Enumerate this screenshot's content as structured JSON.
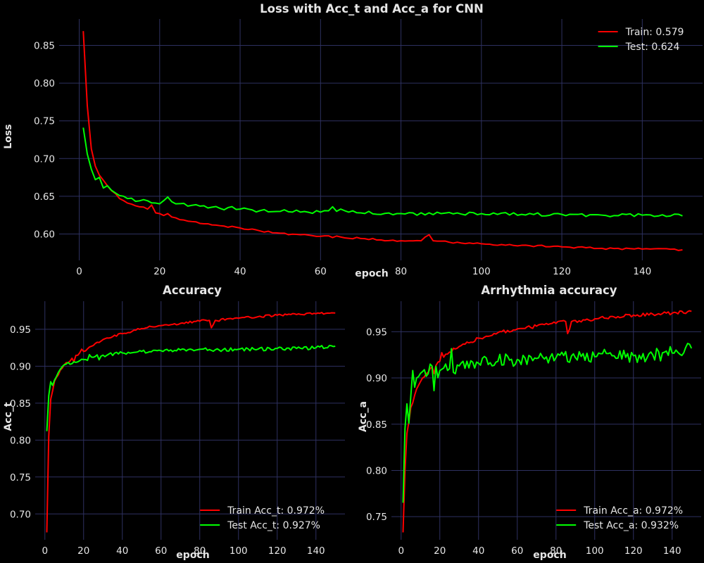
{
  "colors": {
    "background": "#000000",
    "grid": "#2e3160",
    "train": "#ff0000",
    "test": "#00ff00",
    "text": "#e6e6e6"
  },
  "chart_data": [
    {
      "id": "loss",
      "type": "line",
      "title": "Loss with Acc_t and Acc_a for CNN",
      "xlabel": "epoch",
      "ylabel": "Loss",
      "xlim": [
        -5,
        155
      ],
      "ylim": [
        0.565,
        0.885
      ],
      "xticks": [
        0,
        20,
        40,
        60,
        80,
        100,
        120,
        140
      ],
      "yticks": [
        0.6,
        0.65,
        0.7,
        0.75,
        0.8,
        0.85
      ],
      "ytick_labels": [
        "0.60",
        "0.65",
        "0.70",
        "0.75",
        "0.80",
        "0.85"
      ],
      "grid": true,
      "legend_position": "top-right",
      "epochs": [
        1,
        150
      ],
      "series": [
        {
          "name": "Train: 0.579",
          "color": "#ff0000",
          "keypoints": [
            [
              1,
              0.869
            ],
            [
              2,
              0.77
            ],
            [
              3,
              0.713
            ],
            [
              4,
              0.69
            ],
            [
              5,
              0.678
            ],
            [
              7,
              0.664
            ],
            [
              10,
              0.647
            ],
            [
              12,
              0.641
            ],
            [
              15,
              0.636
            ],
            [
              17,
              0.633
            ],
            [
              19,
              0.628
            ],
            [
              20,
              0.627
            ],
            [
              25,
              0.619
            ],
            [
              30,
              0.614
            ],
            [
              35,
              0.611
            ],
            [
              40,
              0.608
            ],
            [
              45,
              0.604
            ],
            [
              50,
              0.601
            ],
            [
              55,
              0.599
            ],
            [
              60,
              0.597
            ],
            [
              65,
              0.596
            ],
            [
              70,
              0.594
            ],
            [
              80,
              0.591
            ],
            [
              85,
              0.591
            ],
            [
              87,
              0.599
            ],
            [
              88,
              0.591
            ],
            [
              95,
              0.588
            ],
            [
              100,
              0.587
            ],
            [
              105,
              0.586
            ],
            [
              110,
              0.585
            ],
            [
              120,
              0.583
            ],
            [
              130,
              0.581
            ],
            [
              140,
              0.58
            ],
            [
              150,
              0.579
            ]
          ],
          "noise": 0.0012,
          "spikes": [
            [
              18,
              0.008
            ],
            [
              22,
              0.004
            ]
          ]
        },
        {
          "name": "Test: 0.624",
          "color": "#00ff00",
          "keypoints": [
            [
              1,
              0.741
            ],
            [
              2,
              0.706
            ],
            [
              3,
              0.686
            ],
            [
              4,
              0.672
            ],
            [
              5,
              0.675
            ],
            [
              6,
              0.661
            ],
            [
              7,
              0.664
            ],
            [
              8,
              0.658
            ],
            [
              10,
              0.651
            ],
            [
              12,
              0.647
            ],
            [
              15,
              0.644
            ],
            [
              17,
              0.644
            ],
            [
              20,
              0.64
            ],
            [
              22,
              0.649
            ],
            [
              24,
              0.64
            ],
            [
              28,
              0.638
            ],
            [
              30,
              0.637
            ],
            [
              35,
              0.634
            ],
            [
              40,
              0.633
            ],
            [
              45,
              0.631
            ],
            [
              50,
              0.63
            ],
            [
              60,
              0.629
            ],
            [
              65,
              0.633
            ],
            [
              70,
              0.628
            ],
            [
              80,
              0.627
            ],
            [
              90,
              0.627
            ],
            [
              100,
              0.627
            ],
            [
              110,
              0.626
            ],
            [
              120,
              0.626
            ],
            [
              130,
              0.625
            ],
            [
              140,
              0.625
            ],
            [
              150,
              0.624
            ]
          ],
          "noise": 0.0022,
          "spikes": [
            [
              38,
              0.004
            ],
            [
              63,
              0.004
            ]
          ]
        }
      ]
    },
    {
      "id": "acc_t",
      "type": "line",
      "title": "Accuracy",
      "xlabel": "epoch",
      "ylabel": "Acc_t",
      "xlim": [
        -5,
        155
      ],
      "ylim": [
        0.665,
        0.988
      ],
      "xticks": [
        0,
        20,
        40,
        60,
        80,
        100,
        120,
        140
      ],
      "yticks": [
        0.7,
        0.75,
        0.8,
        0.85,
        0.9,
        0.95
      ],
      "ytick_labels": [
        "0.70",
        "0.75",
        "0.80",
        "0.85",
        "0.90",
        "0.95"
      ],
      "grid": true,
      "legend_position": "bottom-right",
      "epochs": [
        1,
        150
      ],
      "series": [
        {
          "name": "Train Acc_t: 0.972%",
          "color": "#ff0000",
          "keypoints": [
            [
              1,
              0.675
            ],
            [
              2,
              0.805
            ],
            [
              3,
              0.855
            ],
            [
              5,
              0.88
            ],
            [
              8,
              0.895
            ],
            [
              10,
              0.902
            ],
            [
              15,
              0.912
            ],
            [
              20,
              0.92
            ],
            [
              25,
              0.928
            ],
            [
              30,
              0.936
            ],
            [
              35,
              0.94
            ],
            [
              40,
              0.944
            ],
            [
              50,
              0.951
            ],
            [
              60,
              0.955
            ],
            [
              70,
              0.958
            ],
            [
              80,
              0.961
            ],
            [
              85,
              0.962
            ],
            [
              86,
              0.952
            ],
            [
              88,
              0.962
            ],
            [
              100,
              0.965
            ],
            [
              110,
              0.967
            ],
            [
              120,
              0.969
            ],
            [
              130,
              0.97
            ],
            [
              140,
              0.971
            ],
            [
              150,
              0.972
            ]
          ],
          "noise": 0.0016,
          "spikes": [
            [
              15,
              -0.006
            ],
            [
              19,
              0.005
            ]
          ]
        },
        {
          "name": "Test Acc_t: 0.927%",
          "color": "#00ff00",
          "keypoints": [
            [
              1,
              0.812
            ],
            [
              2,
              0.86
            ],
            [
              3,
              0.879
            ],
            [
              4,
              0.874
            ],
            [
              6,
              0.886
            ],
            [
              8,
              0.896
            ],
            [
              10,
              0.902
            ],
            [
              15,
              0.906
            ],
            [
              20,
              0.909
            ],
            [
              25,
              0.912
            ],
            [
              30,
              0.915
            ],
            [
              40,
              0.918
            ],
            [
              50,
              0.92
            ],
            [
              60,
              0.921
            ],
            [
              70,
              0.922
            ],
            [
              80,
              0.923
            ],
            [
              90,
              0.922
            ],
            [
              100,
              0.923
            ],
            [
              110,
              0.923
            ],
            [
              120,
              0.924
            ],
            [
              130,
              0.924
            ],
            [
              140,
              0.925
            ],
            [
              150,
              0.927
            ]
          ],
          "noise": 0.0025,
          "spikes": [
            [
              23,
              0.006
            ],
            [
              28,
              -0.005
            ]
          ]
        }
      ]
    },
    {
      "id": "acc_a",
      "type": "line",
      "title": "Arrhythmia accuracy",
      "xlabel": "epoch",
      "ylabel": "Acc_a",
      "xlim": [
        -5,
        155
      ],
      "ylim": [
        0.725,
        0.983
      ],
      "xticks": [
        0,
        20,
        40,
        60,
        80,
        100,
        120,
        140
      ],
      "yticks": [
        0.75,
        0.8,
        0.85,
        0.9,
        0.95
      ],
      "ytick_labels": [
        "0.75",
        "0.80",
        "0.85",
        "0.90",
        "0.95"
      ],
      "grid": true,
      "legend_position": "bottom-right",
      "epochs": [
        1,
        150
      ],
      "series": [
        {
          "name": "Train Acc_a: 0.972%",
          "color": "#ff0000",
          "keypoints": [
            [
              1,
              0.733
            ],
            [
              2,
              0.8
            ],
            [
              3,
              0.84
            ],
            [
              5,
              0.868
            ],
            [
              8,
              0.888
            ],
            [
              10,
              0.896
            ],
            [
              15,
              0.91
            ],
            [
              20,
              0.918
            ],
            [
              25,
              0.928
            ],
            [
              30,
              0.934
            ],
            [
              35,
              0.938
            ],
            [
              40,
              0.943
            ],
            [
              50,
              0.949
            ],
            [
              60,
              0.953
            ],
            [
              70,
              0.956
            ],
            [
              80,
              0.959
            ],
            [
              85,
              0.961
            ],
            [
              86,
              0.948
            ],
            [
              88,
              0.961
            ],
            [
              100,
              0.964
            ],
            [
              110,
              0.966
            ],
            [
              120,
              0.968
            ],
            [
              130,
              0.969
            ],
            [
              140,
              0.97
            ],
            [
              150,
              0.972
            ]
          ],
          "noise": 0.0018,
          "spikes": [
            [
              17,
              -0.008
            ],
            [
              21,
              0.006
            ]
          ]
        },
        {
          "name": "Test Acc_a: 0.932%",
          "color": "#00ff00",
          "keypoints": [
            [
              1,
              0.765
            ],
            [
              2,
              0.845
            ],
            [
              3,
              0.872
            ],
            [
              4,
              0.851
            ],
            [
              5,
              0.88
            ],
            [
              6,
              0.908
            ],
            [
              7,
              0.89
            ],
            [
              8,
              0.9
            ],
            [
              10,
              0.905
            ],
            [
              15,
              0.905
            ],
            [
              20,
              0.908
            ],
            [
              25,
              0.91
            ],
            [
              30,
              0.913
            ],
            [
              40,
              0.916
            ],
            [
              50,
              0.918
            ],
            [
              60,
              0.92
            ],
            [
              70,
              0.921
            ],
            [
              80,
              0.922
            ],
            [
              90,
              0.922
            ],
            [
              100,
              0.923
            ],
            [
              110,
              0.924
            ],
            [
              120,
              0.924
            ],
            [
              130,
              0.925
            ],
            [
              140,
              0.927
            ],
            [
              150,
              0.932
            ]
          ],
          "noise": 0.0075,
          "spikes": [
            [
              15,
              0.01
            ],
            [
              17,
              -0.015
            ],
            [
              23,
              0.012
            ],
            [
              26,
              0.02
            ],
            [
              28,
              -0.01
            ],
            [
              113,
              0.012
            ]
          ]
        }
      ]
    }
  ]
}
